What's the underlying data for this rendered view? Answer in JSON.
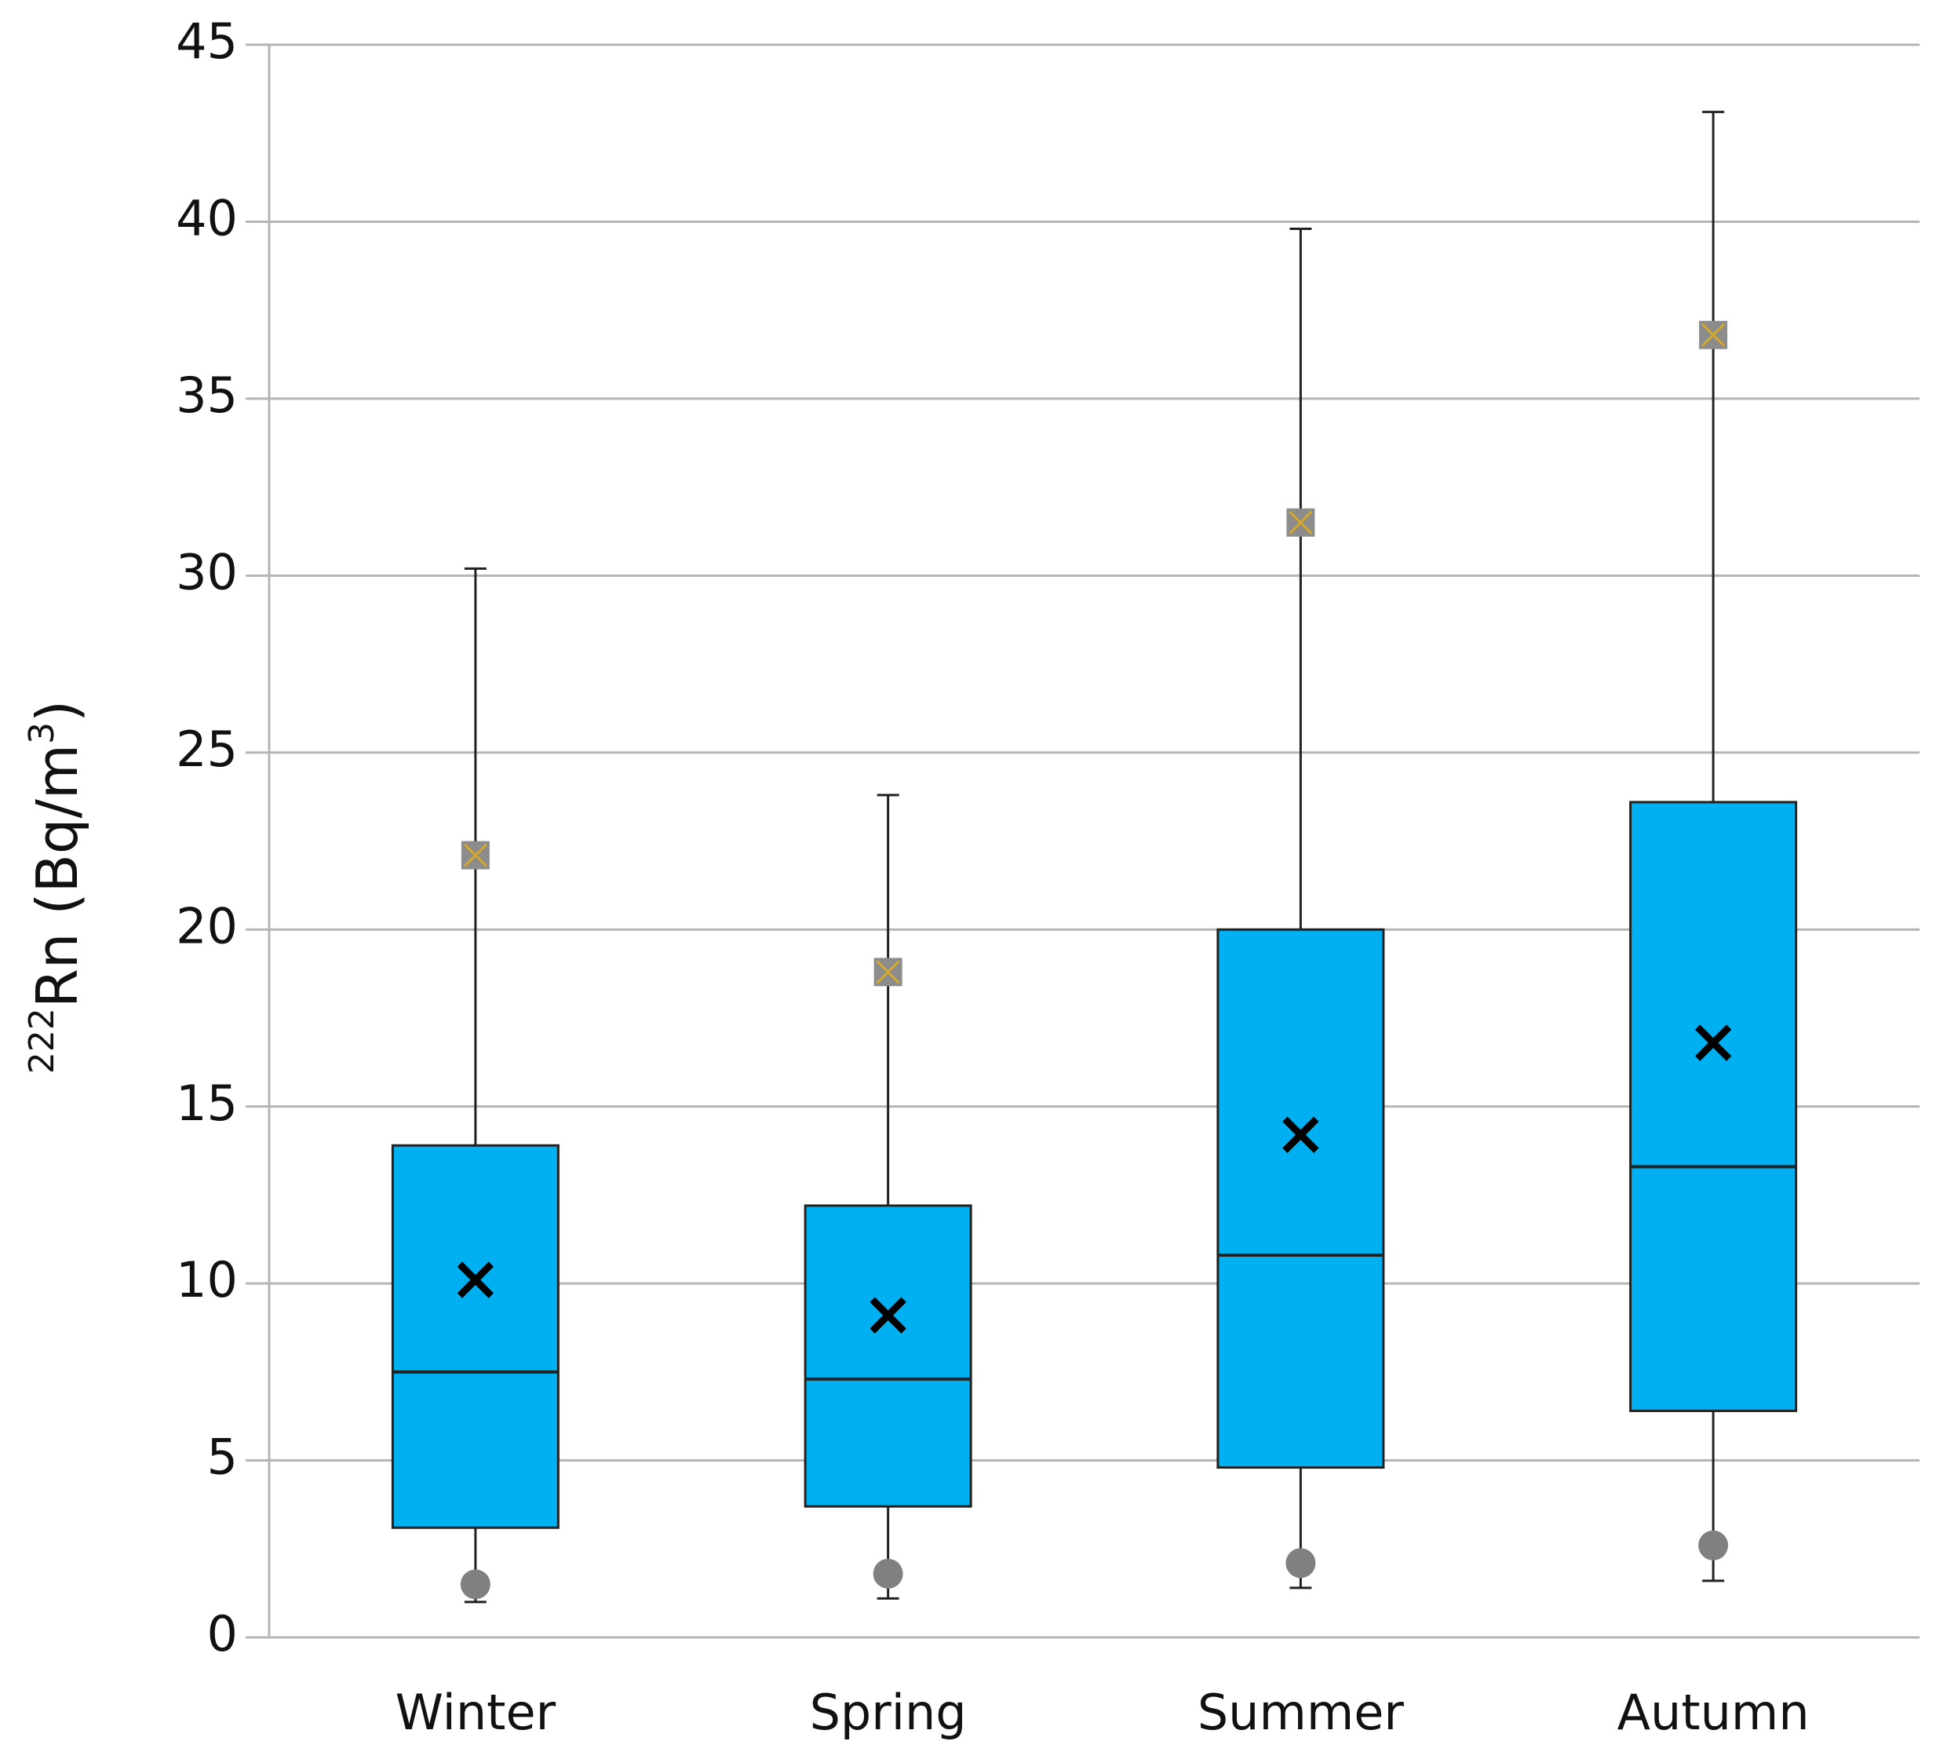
{
  "chart_data": {
    "type": "box",
    "ylabel_parts": [
      "222",
      "Rn (Bq/m",
      "3",
      ")"
    ],
    "categories": [
      "Winter",
      "Spring",
      "Summer",
      "Autumn"
    ],
    "boxes": [
      {
        "min": 1.0,
        "q1": 3.1,
        "median": 7.5,
        "q3": 13.9,
        "max": 30.2,
        "mean": 10.1,
        "upper_point": 22.1,
        "lower_point": 1.5
      },
      {
        "min": 1.1,
        "q1": 3.7,
        "median": 7.3,
        "q3": 12.2,
        "max": 23.8,
        "mean": 9.1,
        "upper_point": 18.8,
        "lower_point": 1.8
      },
      {
        "min": 1.4,
        "q1": 4.8,
        "median": 10.8,
        "q3": 20.0,
        "max": 39.8,
        "mean": 14.2,
        "upper_point": 31.5,
        "lower_point": 2.1
      },
      {
        "min": 1.6,
        "q1": 6.4,
        "median": 13.3,
        "q3": 23.6,
        "max": 43.1,
        "mean": 16.8,
        "upper_point": 36.8,
        "lower_point": 2.6
      }
    ],
    "color": "#00b0f0",
    "ylim": [
      0,
      45
    ],
    "yticks": [
      0,
      5,
      10,
      15,
      20,
      25,
      30,
      35,
      40,
      45
    ],
    "grid": true
  }
}
